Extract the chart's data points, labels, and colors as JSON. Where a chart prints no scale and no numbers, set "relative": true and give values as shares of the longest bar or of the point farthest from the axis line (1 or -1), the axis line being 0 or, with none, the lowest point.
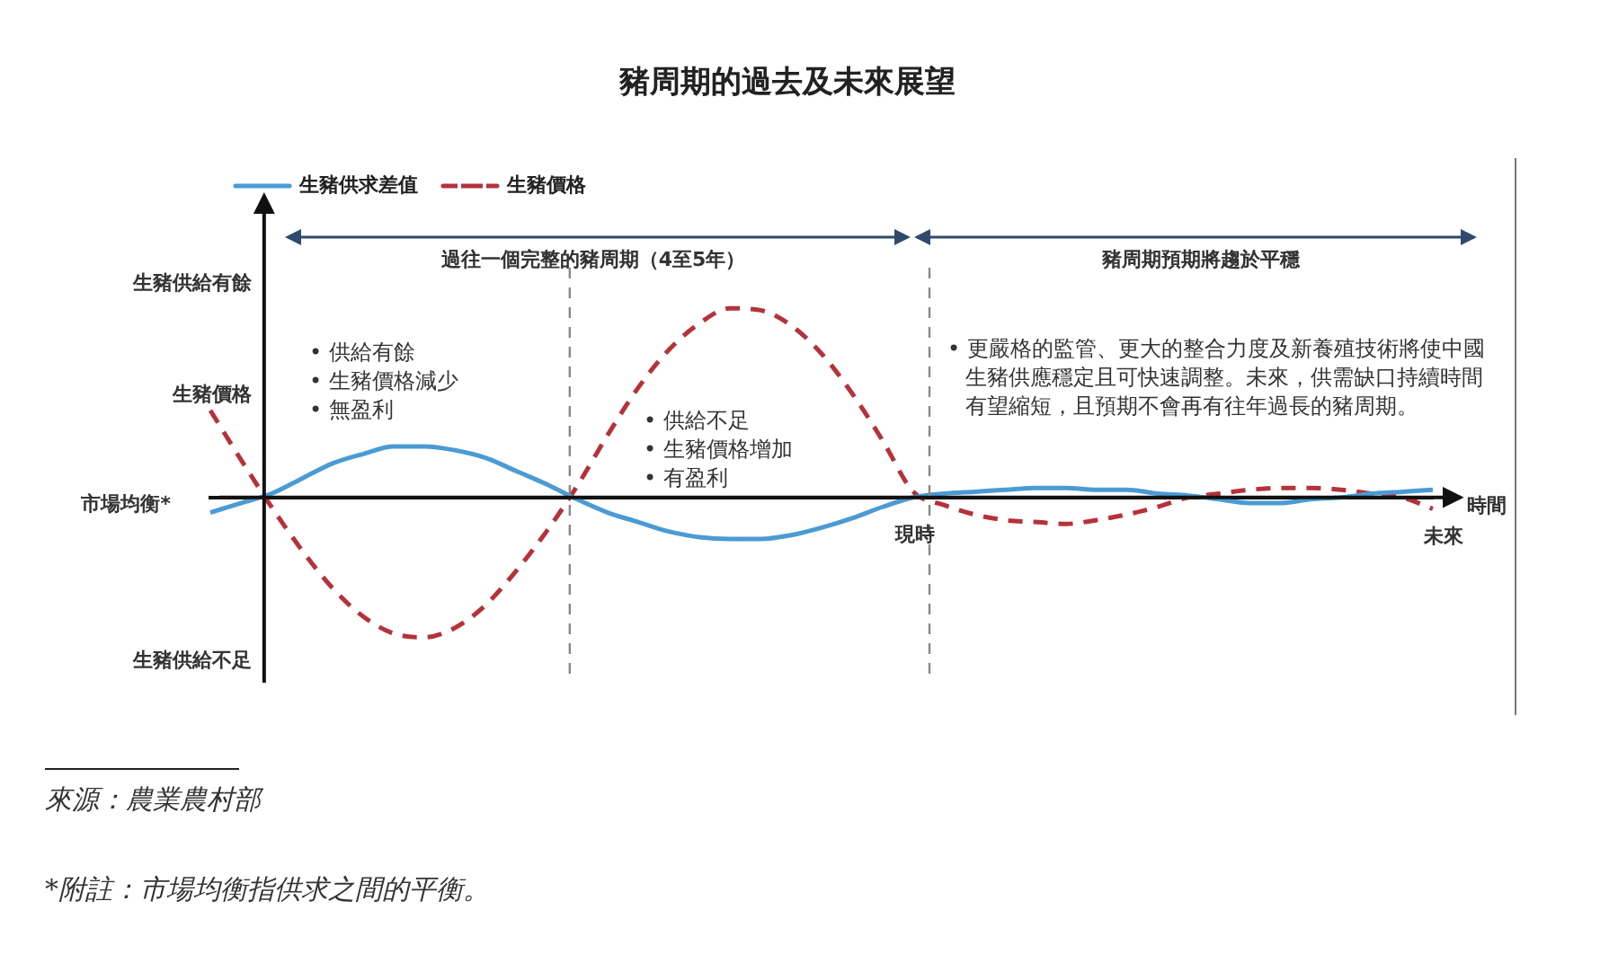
{
  "chart_data": {
    "type": "line",
    "title": "豬周期的過去及未來展望",
    "relative": true,
    "legend": "top left",
    "marker": "none",
    "categories": [
      null,
      null,
      null,
      null,
      null,
      null,
      null,
      null,
      null,
      null,
      null,
      null,
      null,
      null,
      null,
      null,
      null,
      null,
      null,
      null,
      null,
      null,
      null,
      null,
      null,
      null,
      null,
      null,
      null,
      null,
      null,
      null,
      null,
      null,
      null,
      null,
      null,
      null,
      null,
      null,
      null
    ],
    "series": [
      {
        "name": "生豬供求差值",
        "color": "#4a9bd4",
        "line_style": "solid",
        "values": [
          -0.08,
          -0.03,
          0.02,
          0.1,
          0.18,
          0.23,
          0.27,
          0.27,
          0.25,
          0.21,
          0.14,
          0.07,
          -0.01,
          -0.08,
          -0.13,
          -0.18,
          -0.21,
          -0.22,
          -0.22,
          -0.2,
          -0.16,
          -0.11,
          -0.05,
          0.0,
          0.02,
          0.03,
          0.04,
          0.05,
          0.05,
          0.04,
          0.04,
          0.02,
          0.01,
          -0.01,
          -0.03,
          -0.03,
          -0.01,
          0.0,
          0.02,
          0.03,
          0.04
        ]
      },
      {
        "name": "生豬價格",
        "color": "#b5323a",
        "line_style": "dashed",
        "values": [
          0.46,
          0.2,
          -0.05,
          -0.28,
          -0.48,
          -0.63,
          -0.72,
          -0.74,
          -0.69,
          -0.57,
          -0.39,
          -0.18,
          0.06,
          0.33,
          0.58,
          0.78,
          0.92,
          1,
          0.99,
          0.91,
          0.76,
          0.55,
          0.3,
          0.03,
          -0.04,
          -0.09,
          -0.12,
          -0.13,
          -0.14,
          -0.12,
          -0.09,
          -0.05,
          0.0,
          0.02,
          0.04,
          0.05,
          0.05,
          0.04,
          0.02,
          0.0,
          -0.06
        ]
      }
    ],
    "annotations": [
      "生豬供給有餘",
      "生豬價格",
      "市場均衡*",
      "生豬供給不足",
      "過往一個完整的豬周期（4至5年）",
      "豬周期預期將趨於平穩",
      "• 供給有餘\n• 生豬價格減少\n• 無盈利",
      "• 供給不足\n• 生豬價格增加\n• 有盈利",
      "• 更嚴格的監管、更大的整合力度及新養殖技術將使中國生豬供應穩定且可快速調整。未來，供需缺口持續時間有望縮短，且預期不會再有往年過長的豬周期。",
      "現時",
      "時間",
      "未來",
      "來源：農業農村部",
      "*附註：市場均衡指供求之間的平衡。"
    ]
  }
}
